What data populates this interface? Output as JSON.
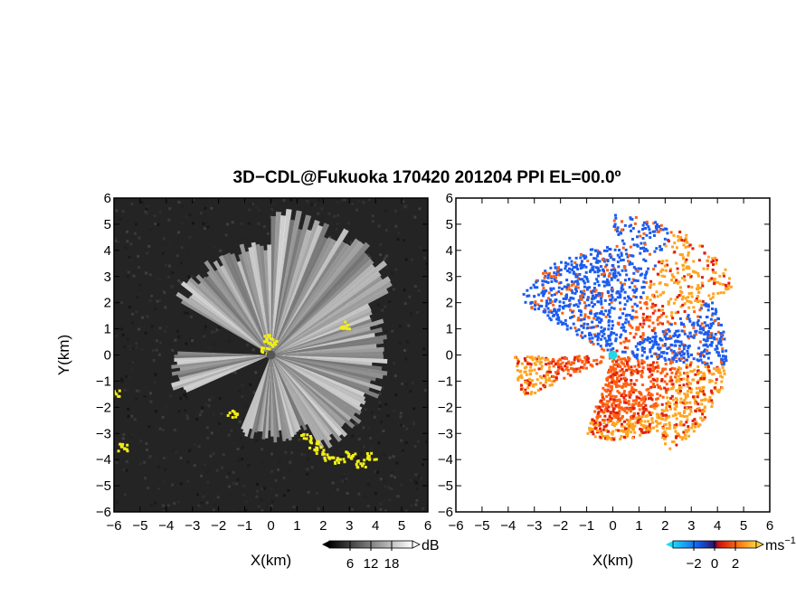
{
  "chart_data": {
    "title": "3D−CDL@Fukuoka 170420 201204 PPI EL=00.0º",
    "type": "heatmap",
    "panels": [
      {
        "name": "intensity",
        "xlabel": "X(km)",
        "ylabel": "Y(km)",
        "xlim": [
          -6,
          6
        ],
        "ylim": [
          -6,
          6
        ],
        "x_ticks": [
          "−6",
          "−5",
          "−4",
          "−3",
          "−2",
          "−1",
          "0",
          "1",
          "2",
          "3",
          "4",
          "5",
          "6"
        ],
        "y_ticks": [
          "6",
          "5",
          "4",
          "3",
          "2",
          "1",
          "0",
          "−1",
          "−2",
          "−3",
          "−4",
          "−5",
          "−6"
        ],
        "colorbar": {
          "unit": "dB",
          "ticks": [
            "6",
            "12",
            "18"
          ],
          "range": [
            0,
            24
          ]
        },
        "overlay_color": "#f2ee16",
        "background_color": "#242424"
      },
      {
        "name": "velocity",
        "xlabel": "X(km)",
        "ylabel": "",
        "xlim": [
          -6,
          6
        ],
        "ylim": [
          -6,
          6
        ],
        "x_ticks": [
          "−6",
          "−5",
          "−4",
          "−3",
          "−2",
          "−1",
          "0",
          "1",
          "2",
          "3",
          "4",
          "5",
          "6"
        ],
        "y_ticks": [
          "6",
          "5",
          "4",
          "3",
          "2",
          "1",
          "0",
          "−1",
          "−2",
          "−3",
          "−4",
          "−5",
          "−6"
        ],
        "colorbar": {
          "unit": "ms",
          "unit_sup": "−1",
          "ticks": [
            "−2",
            "0",
            "2"
          ],
          "range": [
            -4,
            4
          ]
        },
        "colors": {
          "negative": "#1c5cf0",
          "positive": "#ff6010",
          "far": "#ffa420",
          "edge": "#e02010",
          "origin": "#20d8e8"
        }
      }
    ]
  }
}
